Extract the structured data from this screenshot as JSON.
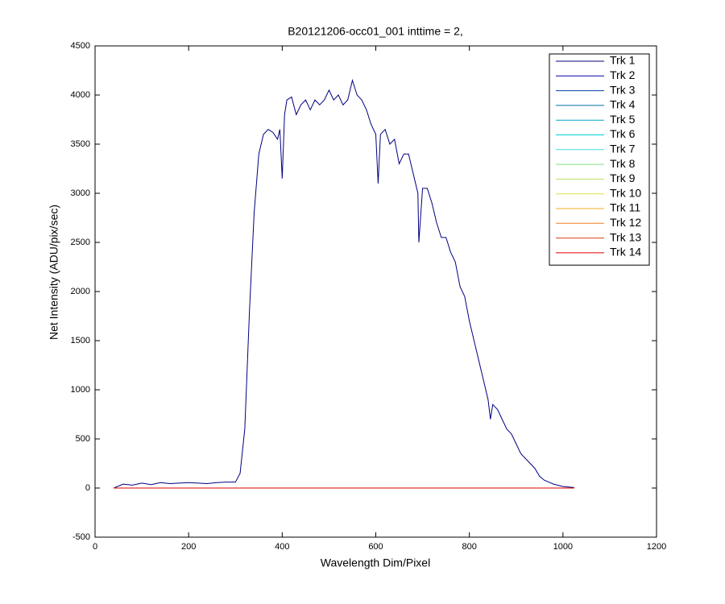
{
  "chart_data": {
    "type": "line",
    "title": "B20121206-occ01_001 inttime = 2,",
    "x_label": "Wavelength Dim/Pixel",
    "y_label": "Net Intensity (ADU/pix/sec)",
    "xlim": [
      0,
      1200
    ],
    "xticks": [
      0,
      200,
      400,
      600,
      800,
      1000,
      1200
    ],
    "ylim": [
      -500,
      4500
    ],
    "yticks": [
      -500,
      0,
      500,
      1000,
      1500,
      2000,
      2500,
      3000,
      3500,
      4000,
      4500
    ],
    "legend": "upper right",
    "series": [
      {
        "name": "Trk 1",
        "color": "#000080",
        "x": [
          40,
          60,
          80,
          100,
          120,
          140,
          160,
          180,
          200,
          220,
          240,
          260,
          280,
          300,
          310,
          320,
          330,
          340,
          350,
          360,
          370,
          380,
          390,
          395,
          400,
          405,
          410,
          420,
          430,
          440,
          450,
          460,
          470,
          480,
          490,
          500,
          510,
          520,
          530,
          540,
          550,
          560,
          570,
          580,
          590,
          600,
          605,
          610,
          620,
          630,
          640,
          650,
          660,
          670,
          680,
          690,
          692,
          700,
          710,
          720,
          730,
          740,
          750,
          760,
          770,
          780,
          790,
          800,
          810,
          820,
          830,
          840,
          845,
          850,
          860,
          870,
          880,
          890,
          900,
          910,
          920,
          930,
          940,
          950,
          960,
          970,
          980,
          1000,
          1024
        ],
        "values": [
          0,
          40,
          30,
          50,
          35,
          55,
          45,
          50,
          55,
          50,
          45,
          55,
          60,
          60,
          150,
          600,
          1800,
          2800,
          3400,
          3600,
          3650,
          3620,
          3550,
          3650,
          3150,
          3800,
          3950,
          3980,
          3800,
          3900,
          3950,
          3850,
          3950,
          3900,
          3950,
          4050,
          3950,
          4000,
          3900,
          3950,
          4150,
          4000,
          3950,
          3850,
          3700,
          3600,
          3100,
          3600,
          3650,
          3500,
          3550,
          3300,
          3400,
          3400,
          3200,
          3000,
          2500,
          3050,
          3050,
          2900,
          2700,
          2550,
          2550,
          2400,
          2300,
          2050,
          1950,
          1700,
          1500,
          1300,
          1100,
          900,
          700,
          850,
          800,
          700,
          600,
          550,
          450,
          350,
          300,
          250,
          200,
          120,
          80,
          60,
          40,
          15,
          5
        ]
      },
      {
        "name": "Trk 2",
        "color": "#0000a8",
        "x": [
          40,
          1024
        ],
        "values": [
          0,
          0
        ]
      },
      {
        "name": "Trk 3",
        "color": "#0040a8",
        "x": [
          40,
          1024
        ],
        "values": [
          0,
          0
        ]
      },
      {
        "name": "Trk 4",
        "color": "#0070a8",
        "x": [
          40,
          1024
        ],
        "values": [
          0,
          0
        ]
      },
      {
        "name": "Trk 5",
        "color": "#00a8c8",
        "x": [
          40,
          1024
        ],
        "values": [
          0,
          0
        ]
      },
      {
        "name": "Trk 6",
        "color": "#00d0d8",
        "x": [
          40,
          1024
        ],
        "values": [
          0,
          0
        ]
      },
      {
        "name": "Trk 7",
        "color": "#40e0e0",
        "x": [
          40,
          1024
        ],
        "values": [
          0,
          0
        ]
      },
      {
        "name": "Trk 8",
        "color": "#80e080",
        "x": [
          40,
          1024
        ],
        "values": [
          0,
          0
        ]
      },
      {
        "name": "Trk 9",
        "color": "#b8e060",
        "x": [
          40,
          1024
        ],
        "values": [
          0,
          0
        ]
      },
      {
        "name": "Trk 10",
        "color": "#e0e040",
        "x": [
          40,
          1024
        ],
        "values": [
          0,
          0
        ]
      },
      {
        "name": "Trk 11",
        "color": "#f0b020",
        "x": [
          40,
          1024
        ],
        "values": [
          0,
          0
        ]
      },
      {
        "name": "Trk 12",
        "color": "#f08020",
        "x": [
          40,
          1024
        ],
        "values": [
          0,
          0
        ]
      },
      {
        "name": "Trk 13",
        "color": "#e04010",
        "x": [
          40,
          1024
        ],
        "values": [
          0,
          0
        ]
      },
      {
        "name": "Trk 14",
        "color": "#e00000",
        "x": [
          40,
          1024
        ],
        "values": [
          0,
          0
        ]
      }
    ]
  }
}
